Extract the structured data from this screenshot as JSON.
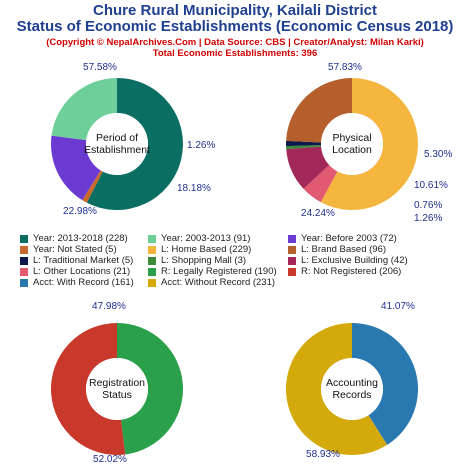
{
  "header": {
    "title_line1": "Chure Rural Municipality, Kailali District",
    "title_line2": "Status of Economic Establishments (Economic Census 2018)",
    "subtitle": "(Copyright © NepalArchives.Com | Data Source: CBS | Creator/Analyst: Milan Karki)",
    "total": "Total Economic Establishments: 396"
  },
  "colors": {
    "dark_teal": "#0b6e63",
    "light_green": "#6fcf9a",
    "purple": "#6a3ad1",
    "brown_orange": "#c96a2a",
    "amber": "#f5b63f",
    "sienna": "#b5602c",
    "navy": "#0b1a4a",
    "forest": "#3a8a3a",
    "maroon": "#a3285a",
    "pink": "#e25a72",
    "green": "#2aa04a",
    "red": "#c8392b",
    "blue": "#2a78b0",
    "gold": "#d4a90c"
  },
  "chart_data": [
    {
      "type": "pie",
      "center_label": [
        "Period of",
        "Establishment"
      ],
      "slices": [
        {
          "label": "Year: 2013-2018",
          "value": 228,
          "pct": "57.58%",
          "color": "#0b6e63"
        },
        {
          "label": "Year: Not Stated",
          "value": 5,
          "pct": "1.26%",
          "color": "#c96a2a"
        },
        {
          "label": "Year: Before 2003",
          "value": 72,
          "pct": "18.18%",
          "color": "#6a3ad1"
        },
        {
          "label": "Year: 2003-2013",
          "value": 91,
          "pct": "22.98%",
          "color": "#6fcf9a"
        }
      ]
    },
    {
      "type": "pie",
      "center_label": [
        "Physical",
        "Location"
      ],
      "slices": [
        {
          "label": "L: Home Based",
          "value": 229,
          "pct": "57.83%",
          "color": "#f5b63f"
        },
        {
          "label": "L: Other Locations",
          "value": 21,
          "pct": "5.30%",
          "color": "#e25a72"
        },
        {
          "label": "L: Exclusive Building",
          "value": 42,
          "pct": "10.61%",
          "color": "#a3285a"
        },
        {
          "label": "L: Shopping Mall",
          "value": 3,
          "pct": "0.76%",
          "color": "#3a8a3a"
        },
        {
          "label": "L: Traditional Market",
          "value": 5,
          "pct": "1.26%",
          "color": "#0b1a4a"
        },
        {
          "label": "L: Brand Based",
          "value": 96,
          "pct": "24.24%",
          "color": "#b5602c"
        }
      ]
    },
    {
      "type": "pie",
      "center_label": [
        "Registration",
        "Status"
      ],
      "slices": [
        {
          "label": "R: Legally Registered",
          "value": 190,
          "pct": "47.98%",
          "color": "#2aa04a"
        },
        {
          "label": "R: Not Registered",
          "value": 206,
          "pct": "52.02%",
          "color": "#c8392b"
        }
      ]
    },
    {
      "type": "pie",
      "center_label": [
        "Accounting",
        "Records"
      ],
      "slices": [
        {
          "label": "Acct: With Record",
          "value": 161,
          "pct": "41.07%",
          "color": "#2a78b0"
        },
        {
          "label": "Acct: Without Record",
          "value": 231,
          "pct": "58.93%",
          "color": "#d4a90c"
        }
      ]
    }
  ],
  "legend": [
    {
      "text": "Year: 2013-2018 (228)",
      "color": "#0b6e63"
    },
    {
      "text": "Year: 2003-2013 (91)",
      "color": "#6fcf9a"
    },
    {
      "text": "Year: Before 2003 (72)",
      "color": "#6a3ad1"
    },
    {
      "text": "Year: Not Stated (5)",
      "color": "#c96a2a"
    },
    {
      "text": "L: Home Based (229)",
      "color": "#f5b63f"
    },
    {
      "text": "L: Brand Based (96)",
      "color": "#b5602c"
    },
    {
      "text": "L: Traditional Market (5)",
      "color": "#0b1a4a"
    },
    {
      "text": "L: Shopping Mall (3)",
      "color": "#3a8a3a"
    },
    {
      "text": "L: Exclusive Building (42)",
      "color": "#a3285a"
    },
    {
      "text": "L: Other Locations (21)",
      "color": "#e25a72"
    },
    {
      "text": "R: Legally Registered (190)",
      "color": "#2aa04a"
    },
    {
      "text": "R: Not Registered (206)",
      "color": "#c8392b"
    },
    {
      "text": "Acct: With Record (161)",
      "color": "#2a78b0"
    },
    {
      "text": "Acct: Without Record (231)",
      "color": "#d4a90c"
    }
  ]
}
